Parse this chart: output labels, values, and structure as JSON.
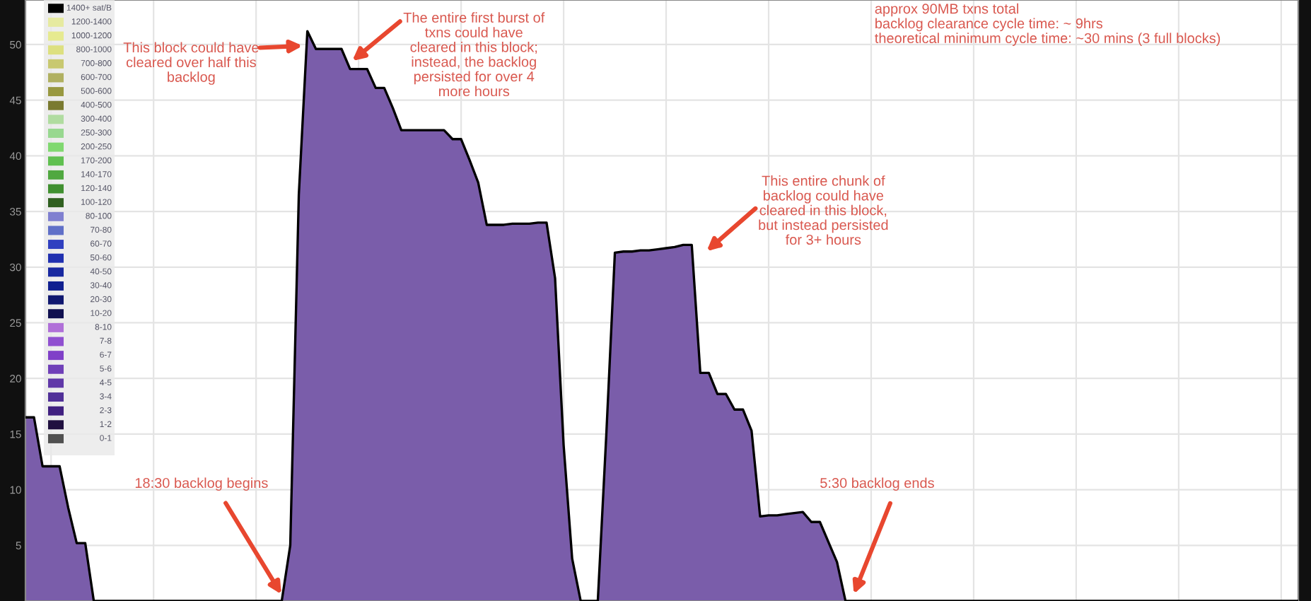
{
  "chart_data": [
    {
      "type": "area",
      "categories": [
        null,
        null,
        null,
        null,
        null,
        null,
        null,
        null,
        null,
        null,
        null,
        null,
        null,
        null,
        null,
        null,
        null,
        null,
        null,
        null,
        null,
        null,
        null,
        null,
        null,
        null,
        null,
        null,
        null,
        null,
        null,
        null,
        null,
        null,
        null,
        null,
        null,
        null,
        null,
        null,
        null,
        null,
        null,
        null,
        null,
        null,
        null,
        null,
        null,
        null,
        null,
        null,
        null,
        null,
        null,
        null,
        null,
        null,
        null,
        null,
        null,
        null,
        null,
        null,
        null,
        null,
        null,
        null,
        null,
        null,
        null,
        null,
        null,
        null,
        null,
        null,
        null,
        null,
        null,
        null,
        null,
        null,
        null,
        null,
        null,
        null,
        null,
        null,
        null,
        null,
        null,
        null,
        null,
        null,
        null,
        null,
        null,
        null,
        null,
        null,
        null,
        null,
        null,
        null,
        null,
        null,
        null,
        null,
        null,
        null,
        null,
        null,
        null,
        null,
        null,
        null,
        null,
        null,
        null,
        null,
        null,
        null,
        null,
        null,
        null,
        null,
        null,
        null,
        null,
        null,
        null,
        null,
        null,
        null,
        null,
        null,
        null,
        null,
        null,
        null,
        null,
        null,
        null,
        null,
        null,
        null,
        null,
        null,
        null,
        null
      ],
      "series": [
        {
          "color": "#7a5daa",
          "values": [
            16.5,
            16.5,
            12.1,
            12.1,
            12.1,
            8.4,
            5.2,
            5.2,
            0,
            0,
            0,
            0,
            0,
            0,
            0,
            0,
            0,
            0,
            0,
            0,
            0,
            0,
            0,
            0,
            0,
            0,
            0,
            0,
            0,
            0,
            0,
            5,
            36.5,
            51.2,
            49.6,
            49.6,
            49.6,
            49.6,
            47.8,
            47.8,
            47.8,
            46.1,
            46.1,
            44.3,
            42.3,
            42.3,
            42.3,
            42.3,
            42.3,
            42.3,
            41.5,
            41.5,
            39.6,
            37.6,
            33.8,
            33.8,
            33.8,
            33.9,
            33.9,
            33.9,
            34,
            34,
            29,
            14,
            3.8,
            0,
            0,
            0,
            15,
            31.3,
            31.4,
            31.4,
            31.5,
            31.5,
            31.6,
            31.7,
            31.8,
            32,
            32,
            20.5,
            20.5,
            18.6,
            18.6,
            17.2,
            17.2,
            15.3,
            7.6,
            7.7,
            7.7,
            7.8,
            7.9,
            8.0,
            7.1,
            7.1,
            5.3,
            3.5,
            0,
            0,
            0,
            0,
            0,
            0,
            0,
            0,
            0,
            0,
            0,
            0,
            0,
            0,
            0,
            0,
            0,
            0,
            0,
            0,
            0,
            0,
            0,
            0,
            0,
            0,
            0,
            0,
            0,
            0,
            0,
            0,
            0,
            0,
            0,
            0,
            0,
            0,
            0,
            0,
            0,
            0,
            0,
            0,
            0,
            0,
            0,
            0,
            0,
            0,
            0,
            0,
            0,
            0
          ]
        }
      ],
      "ylim": [
        0,
        54
      ],
      "yticks": [
        5,
        10,
        15,
        20,
        25,
        30,
        35,
        40,
        45,
        50
      ],
      "grid": true,
      "annotations": [
        "This block could have\ncleared over half this\nbacklog",
        "The entire first burst of\ntxns could have\ncleared in this block;\ninstead, the backlog\npersisted for over 4\nmore hours",
        "This entire chunk of\nbacklog could have\ncleared in this block,\nbut instead persisted\nfor 3+ hours",
        "18:30 backlog begins",
        "5:30 backlog ends",
        "approx 90MB txns total\nbacklog clearance cycle time: ~ 9hrs\ntheoretical minimum cycle time: ~30 mins (3 full blocks)"
      ]
    },
    {
      "type": "other",
      "categories": [
        "1400+ sat/B",
        "1200-1400",
        "1000-1200",
        "800-1000",
        "700-800",
        "600-700",
        "500-600",
        "400-500",
        "300-400",
        "250-300",
        "200-250",
        "170-200",
        "140-170",
        "120-140",
        "100-120",
        "80-100",
        "70-80",
        "60-70",
        "50-60",
        "40-50",
        "30-40",
        "20-30",
        "10-20",
        "8-10",
        "7-8",
        "6-7",
        "5-6",
        "4-5",
        "3-4",
        "2-3",
        "1-2",
        "0-1"
      ],
      "colors": [
        "#000000",
        "#e6eaa0",
        "#e6ea90",
        "#dde080",
        "#c8c870",
        "#b0b060",
        "#989840",
        "#7a7a30",
        "#b0dca0",
        "#98d890",
        "#80d870",
        "#60c050",
        "#50a840",
        "#409030",
        "#306020",
        "#8080d0",
        "#6070c8",
        "#3040c0",
        "#2030b0",
        "#1828a0",
        "#102090",
        "#101870",
        "#101050",
        "#b070d8",
        "#9050d0",
        "#8040c8",
        "#7040b8",
        "#6038a8",
        "#503098",
        "#402080",
        "#201040",
        "#505050"
      ]
    }
  ]
}
